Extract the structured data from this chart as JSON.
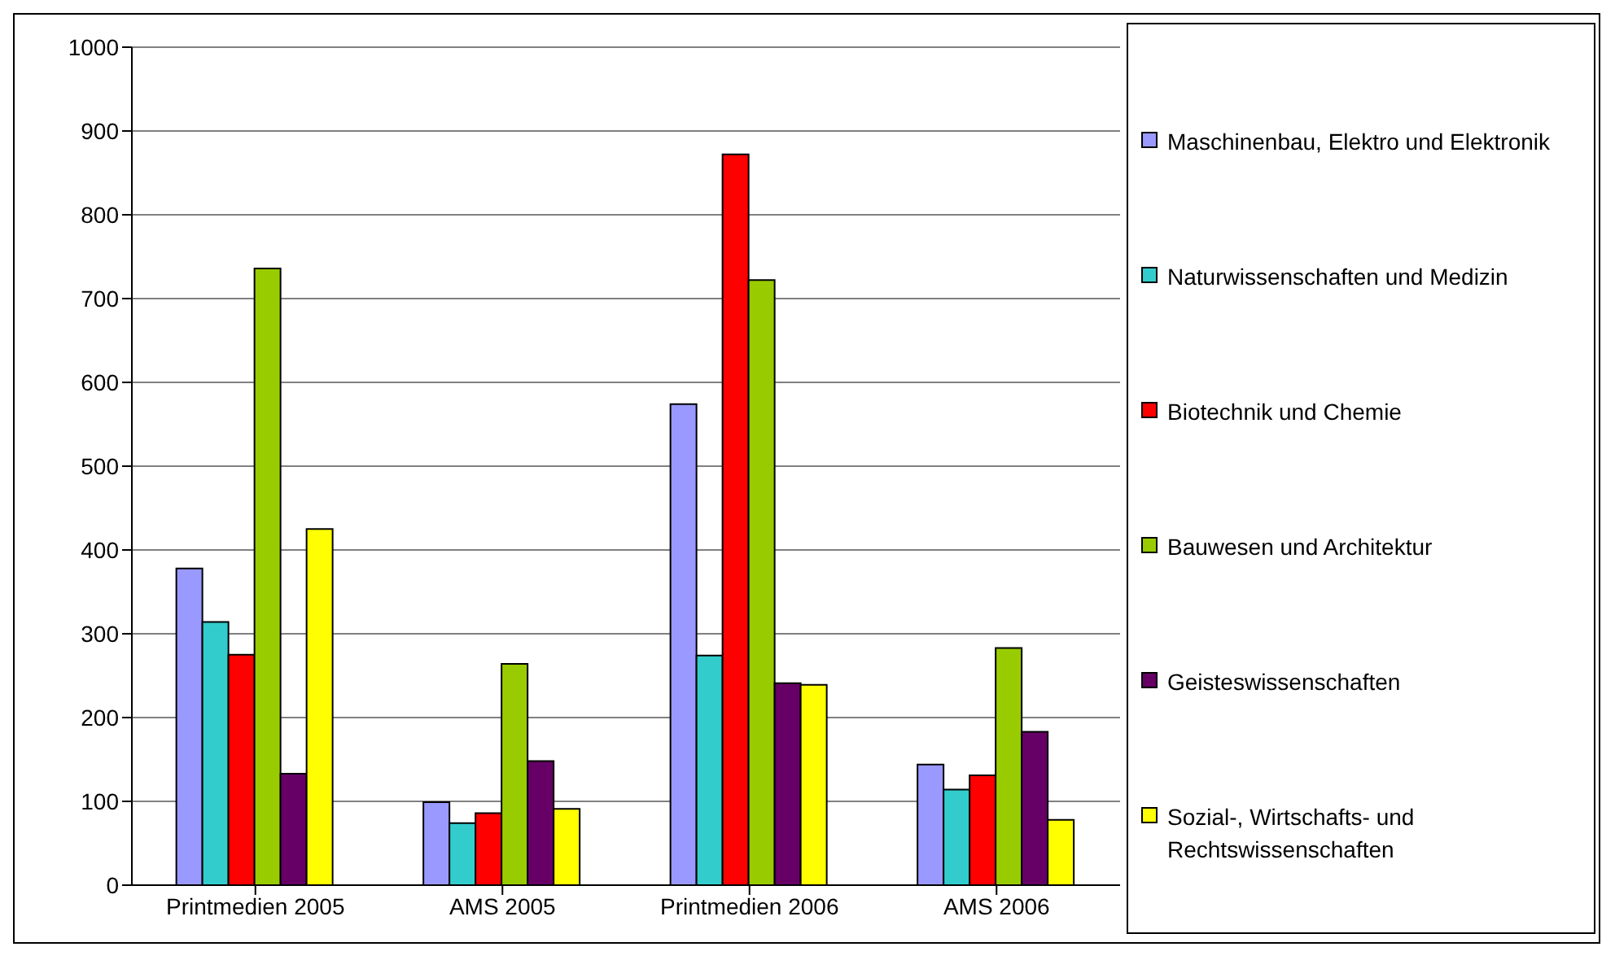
{
  "chart_data": {
    "type": "bar",
    "categories": [
      "Printmedien 2005",
      "AMS 2005",
      "Printmedien 2006",
      "AMS 2006"
    ],
    "series": [
      {
        "name": "Maschinenbau, Elektro und Elektronik",
        "color": "#9999ff",
        "values": [
          378,
          99,
          574,
          144
        ]
      },
      {
        "name": "Naturwissenschaften und Medizin",
        "color": "#33cccc",
        "values": [
          314,
          74,
          274,
          114
        ]
      },
      {
        "name": "Biotechnik und Chemie",
        "color": "#ff0000",
        "values": [
          275,
          86,
          872,
          131
        ]
      },
      {
        "name": "Bauwesen und Architektur",
        "color": "#99cc00",
        "values": [
          736,
          264,
          722,
          283
        ]
      },
      {
        "name": "Geisteswissenschaften",
        "color": "#660066",
        "values": [
          133,
          148,
          241,
          183
        ]
      },
      {
        "name": "Sozial-, Wirtschafts- und Rechtswissenschaften",
        "color": "#ffff00",
        "values": [
          425,
          91,
          239,
          78
        ]
      }
    ],
    "ylim": [
      0,
      1000
    ],
    "yticks": [
      0,
      100,
      200,
      300,
      400,
      500,
      600,
      700,
      800,
      900,
      1000
    ],
    "grid": "y",
    "legend": "right"
  }
}
